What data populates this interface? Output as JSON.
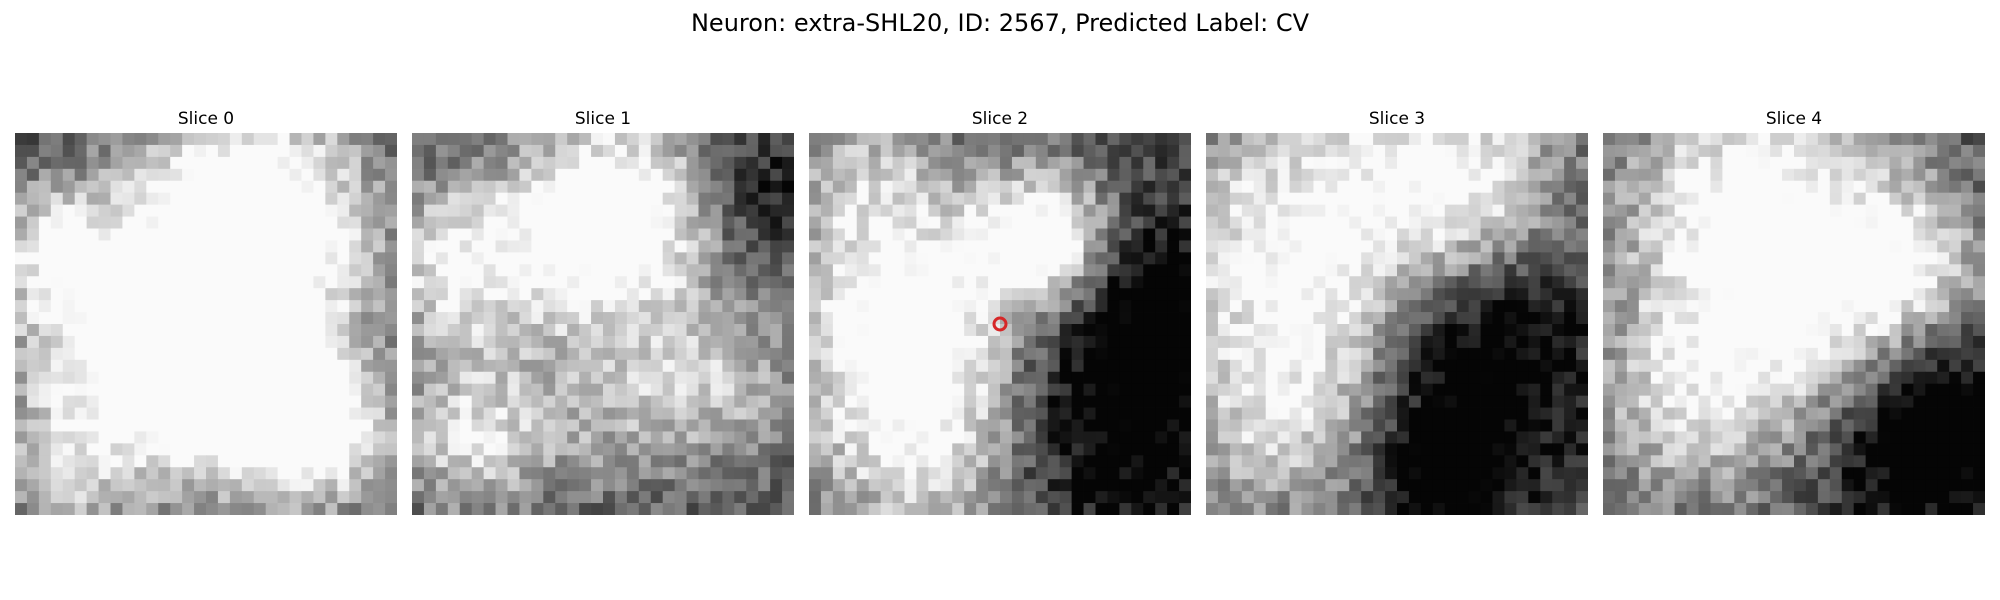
{
  "figure": {
    "title": "Neuron: extra-SHL20, ID: 2567, Predicted Label: CV"
  },
  "panels": [
    {
      "title": "Slice 0"
    },
    {
      "title": "Slice 1"
    },
    {
      "title": "Slice 2"
    },
    {
      "title": "Slice 3"
    },
    {
      "title": "Slice 4"
    }
  ],
  "marker": {
    "panel": 2,
    "shape": "circle",
    "color": "#d62728"
  },
  "colors": {
    "background": "#ffffff",
    "text": "#000000",
    "marker": "#d62728"
  }
}
